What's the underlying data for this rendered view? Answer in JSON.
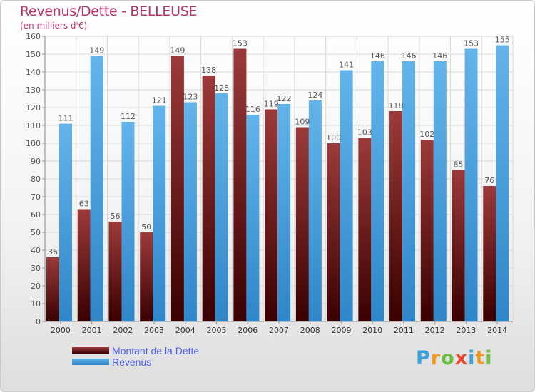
{
  "title": "Revenus/Dette - BELLEUSE",
  "subtitle": "(en milliers d'€)",
  "logo_letters": [
    "P",
    "r",
    "o",
    "x",
    "i",
    "t",
    "i"
  ],
  "logo_colors": [
    "#3aa0d8",
    "#f39a1e",
    "#6cbf3c",
    "#e8452c",
    "#3aa0d8",
    "#f39a1e",
    "#6cbf3c"
  ],
  "colors": {
    "dette_top": "#9c3a3a",
    "dette_bottom": "#3a0000",
    "revenus_top": "#63b4ea",
    "revenus_bottom": "#2f86c8",
    "label_text": "#555555",
    "grid": "#d9d9d9",
    "legend_text": "#4e5ef2",
    "title_text": "#b8336a"
  },
  "chart_data": {
    "type": "bar",
    "categories": [
      "2000",
      "2001",
      "2002",
      "2003",
      "2004",
      "2005",
      "2006",
      "2007",
      "2008",
      "2009",
      "2010",
      "2011",
      "2012",
      "2013",
      "2014"
    ],
    "series": [
      {
        "name": "Montant de la Dette",
        "values": [
          36,
          63,
          56,
          50,
          149,
          138,
          153,
          119,
          109,
          100,
          103,
          118,
          102,
          85,
          76
        ]
      },
      {
        "name": "Revenus",
        "values": [
          111,
          149,
          112,
          121,
          123,
          128,
          116,
          122,
          124,
          141,
          146,
          146,
          146,
          153,
          155
        ]
      }
    ],
    "title": "Revenus/Dette - BELLEUSE",
    "xlabel": "",
    "ylabel": "",
    "ylim": [
      0,
      160
    ],
    "yticks": [
      0,
      10,
      20,
      30,
      40,
      50,
      60,
      70,
      80,
      90,
      100,
      110,
      120,
      130,
      140,
      150,
      160
    ],
    "grid": true,
    "legend": "bottom-left"
  }
}
